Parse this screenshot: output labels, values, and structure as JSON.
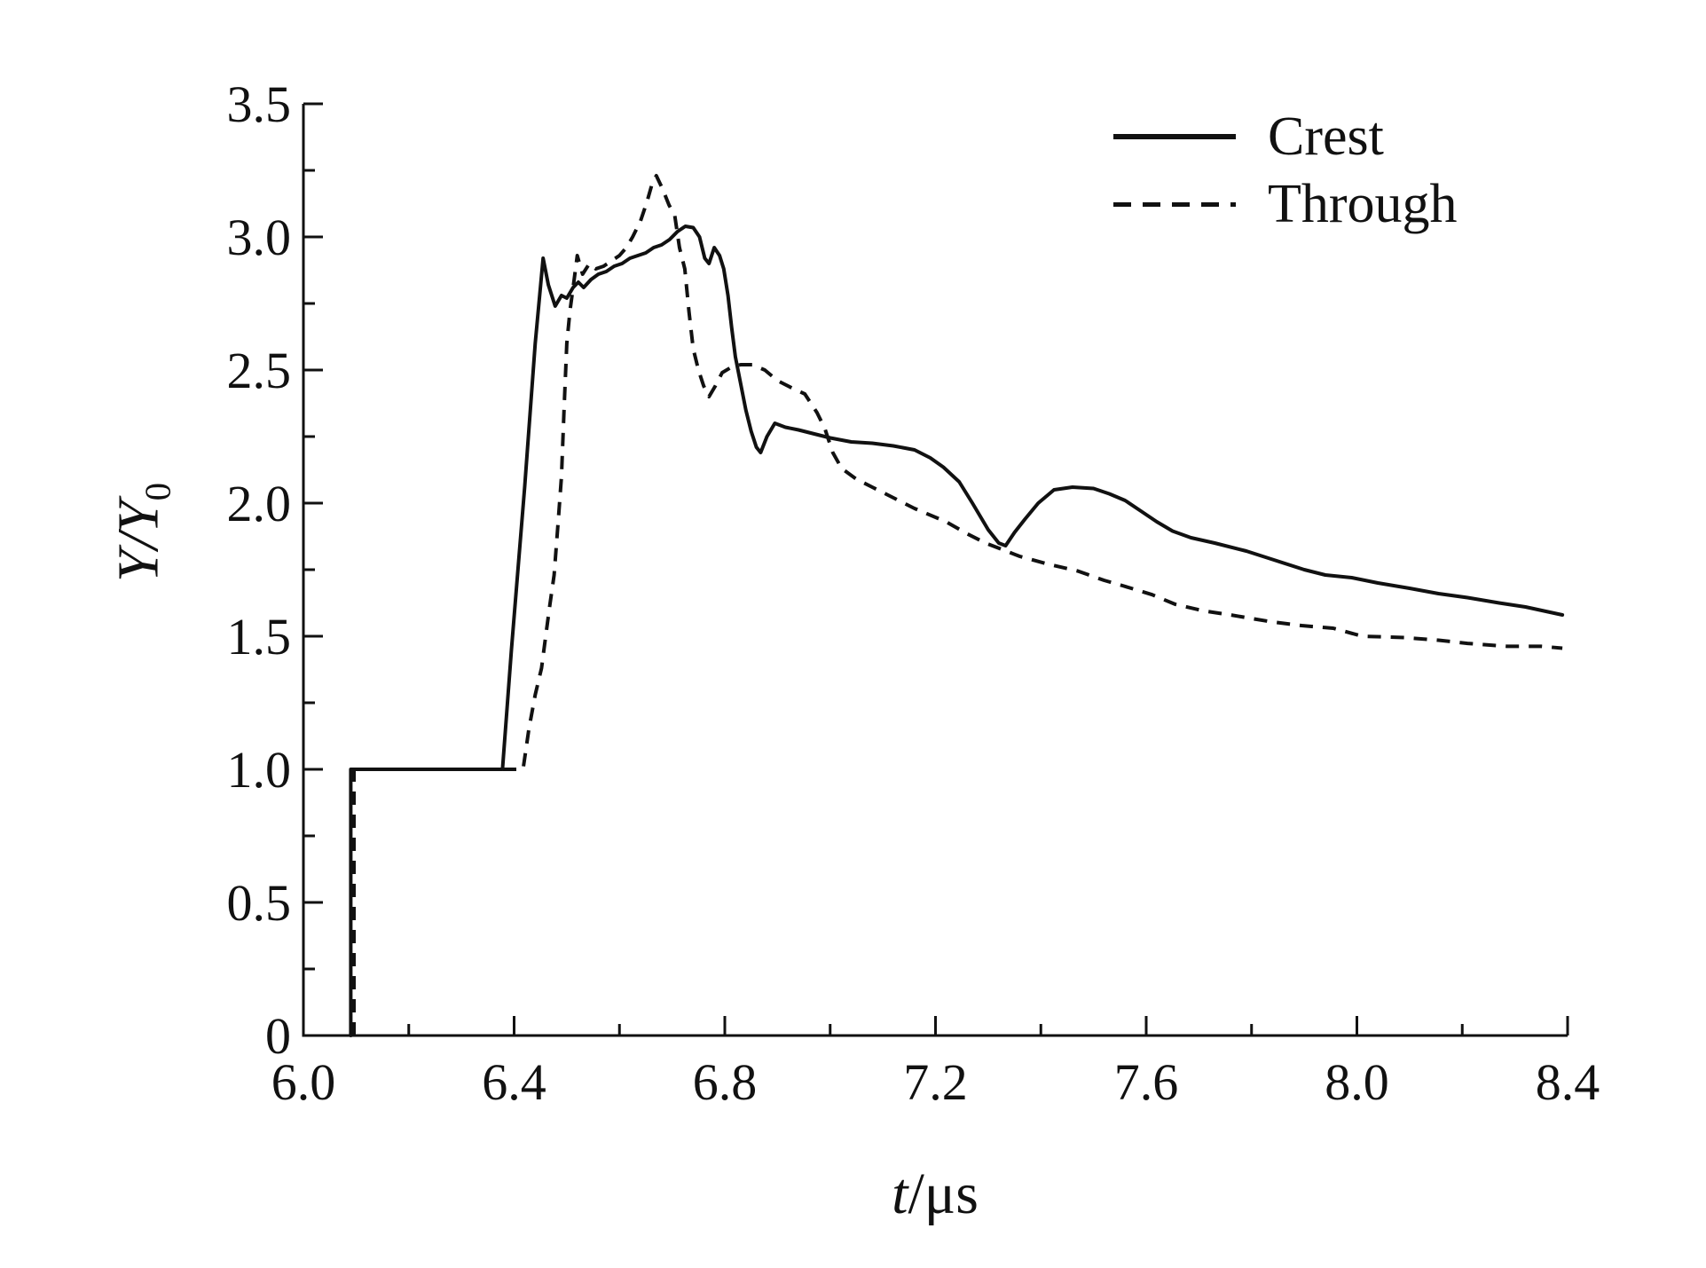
{
  "figure": {
    "background": "#ffffff",
    "line_color": "#111111"
  },
  "labels": {
    "xlabel_italic": "t",
    "xlabel_rest": "/μs",
    "ylabel_main": "Y/Y",
    "ylabel_sub": "0"
  },
  "legend": {
    "items": [
      {
        "label": "Crest",
        "style": "solid"
      },
      {
        "label": "Through",
        "style": "dashed"
      }
    ]
  },
  "chart_data": {
    "type": "line",
    "title": "",
    "xlabel": "t/μs",
    "ylabel": "Y/Y0",
    "xlim": [
      6.0,
      8.4
    ],
    "ylim": [
      0,
      3.5
    ],
    "x_major_step": 0.4,
    "x_minor_step": 0.2,
    "y_major_step": 0.5,
    "y_minor_step": 0.25,
    "xtick_labels": [
      "6.0",
      "6.4",
      "6.8",
      "7.2",
      "7.6",
      "8.0",
      "8.4"
    ],
    "ytick_labels": [
      "0",
      "0.5",
      "1.0",
      "1.5",
      "2.0",
      "2.5",
      "3.0",
      "3.5"
    ],
    "grid": false,
    "legend_position": "upper right",
    "series": [
      {
        "name": "Crest",
        "style": "solid",
        "points": [
          [
            6.09,
            0.0
          ],
          [
            6.09,
            1.0
          ],
          [
            6.378,
            1.0
          ],
          [
            6.395,
            1.45
          ],
          [
            6.42,
            2.06
          ],
          [
            6.44,
            2.6
          ],
          [
            6.455,
            2.92
          ],
          [
            6.465,
            2.82
          ],
          [
            6.478,
            2.74
          ],
          [
            6.49,
            2.78
          ],
          [
            6.5,
            2.77
          ],
          [
            6.512,
            2.81
          ],
          [
            6.522,
            2.83
          ],
          [
            6.532,
            2.81
          ],
          [
            6.546,
            2.84
          ],
          [
            6.56,
            2.86
          ],
          [
            6.575,
            2.87
          ],
          [
            6.59,
            2.89
          ],
          [
            6.605,
            2.9
          ],
          [
            6.62,
            2.92
          ],
          [
            6.635,
            2.93
          ],
          [
            6.65,
            2.94
          ],
          [
            6.665,
            2.96
          ],
          [
            6.68,
            2.97
          ],
          [
            6.695,
            2.99
          ],
          [
            6.71,
            3.02
          ],
          [
            6.725,
            3.04
          ],
          [
            6.74,
            3.035
          ],
          [
            6.752,
            3.0
          ],
          [
            6.762,
            2.92
          ],
          [
            6.77,
            2.9
          ],
          [
            6.78,
            2.96
          ],
          [
            6.79,
            2.93
          ],
          [
            6.798,
            2.88
          ],
          [
            6.806,
            2.78
          ],
          [
            6.813,
            2.66
          ],
          [
            6.82,
            2.55
          ],
          [
            6.83,
            2.45
          ],
          [
            6.84,
            2.35
          ],
          [
            6.85,
            2.27
          ],
          [
            6.86,
            2.21
          ],
          [
            6.868,
            2.19
          ],
          [
            6.88,
            2.25
          ],
          [
            6.895,
            2.3
          ],
          [
            6.915,
            2.285
          ],
          [
            6.94,
            2.275
          ],
          [
            6.97,
            2.26
          ],
          [
            7.0,
            2.245
          ],
          [
            7.04,
            2.23
          ],
          [
            7.08,
            2.225
          ],
          [
            7.12,
            2.215
          ],
          [
            7.16,
            2.2
          ],
          [
            7.19,
            2.17
          ],
          [
            7.215,
            2.135
          ],
          [
            7.245,
            2.08
          ],
          [
            7.27,
            2.0
          ],
          [
            7.3,
            1.9
          ],
          [
            7.32,
            1.85
          ],
          [
            7.333,
            1.84
          ],
          [
            7.35,
            1.89
          ],
          [
            7.37,
            1.94
          ],
          [
            7.395,
            2.0
          ],
          [
            7.425,
            2.05
          ],
          [
            7.46,
            2.06
          ],
          [
            7.5,
            2.055
          ],
          [
            7.53,
            2.035
          ],
          [
            7.56,
            2.01
          ],
          [
            7.59,
            1.97
          ],
          [
            7.62,
            1.93
          ],
          [
            7.65,
            1.895
          ],
          [
            7.685,
            1.87
          ],
          [
            7.73,
            1.85
          ],
          [
            7.79,
            1.82
          ],
          [
            7.845,
            1.785
          ],
          [
            7.9,
            1.75
          ],
          [
            7.94,
            1.73
          ],
          [
            7.99,
            1.72
          ],
          [
            8.04,
            1.7
          ],
          [
            8.1,
            1.68
          ],
          [
            8.155,
            1.66
          ],
          [
            8.21,
            1.645
          ],
          [
            8.27,
            1.625
          ],
          [
            8.32,
            1.61
          ],
          [
            8.39,
            1.58
          ]
        ]
      },
      {
        "name": "Through",
        "style": "dashed",
        "points": [
          [
            6.096,
            0.0
          ],
          [
            6.096,
            1.0
          ],
          [
            6.417,
            1.0
          ],
          [
            6.428,
            1.15
          ],
          [
            6.44,
            1.28
          ],
          [
            6.452,
            1.38
          ],
          [
            6.46,
            1.5
          ],
          [
            6.468,
            1.62
          ],
          [
            6.476,
            1.73
          ],
          [
            6.484,
            1.94
          ],
          [
            6.49,
            2.1
          ],
          [
            6.495,
            2.36
          ],
          [
            6.5,
            2.6
          ],
          [
            6.506,
            2.72
          ],
          [
            6.514,
            2.84
          ],
          [
            6.52,
            2.93
          ],
          [
            6.53,
            2.86
          ],
          [
            6.543,
            2.9
          ],
          [
            6.555,
            2.88
          ],
          [
            6.57,
            2.89
          ],
          [
            6.585,
            2.91
          ],
          [
            6.6,
            2.93
          ],
          [
            6.613,
            2.96
          ],
          [
            6.625,
            3.0
          ],
          [
            6.64,
            3.06
          ],
          [
            6.652,
            3.13
          ],
          [
            6.662,
            3.2
          ],
          [
            6.67,
            3.23
          ],
          [
            6.682,
            3.18
          ],
          [
            6.694,
            3.12
          ],
          [
            6.705,
            3.08
          ],
          [
            6.714,
            2.96
          ],
          [
            6.724,
            2.88
          ],
          [
            6.732,
            2.72
          ],
          [
            6.74,
            2.58
          ],
          [
            6.75,
            2.5
          ],
          [
            6.76,
            2.44
          ],
          [
            6.77,
            2.4
          ],
          [
            6.782,
            2.44
          ],
          [
            6.795,
            2.49
          ],
          [
            6.812,
            2.51
          ],
          [
            6.83,
            2.52
          ],
          [
            6.852,
            2.52
          ],
          [
            6.876,
            2.5
          ],
          [
            6.9,
            2.46
          ],
          [
            6.93,
            2.43
          ],
          [
            6.952,
            2.41
          ],
          [
            6.975,
            2.34
          ],
          [
            6.99,
            2.28
          ],
          [
            7.005,
            2.19
          ],
          [
            7.022,
            2.13
          ],
          [
            7.05,
            2.09
          ],
          [
            7.08,
            2.06
          ],
          [
            7.11,
            2.03
          ],
          [
            7.16,
            1.98
          ],
          [
            7.22,
            1.93
          ],
          [
            7.26,
            1.885
          ],
          [
            7.295,
            1.85
          ],
          [
            7.36,
            1.8
          ],
          [
            7.415,
            1.77
          ],
          [
            7.47,
            1.745
          ],
          [
            7.52,
            1.71
          ],
          [
            7.555,
            1.69
          ],
          [
            7.61,
            1.657
          ],
          [
            7.655,
            1.62
          ],
          [
            7.71,
            1.595
          ],
          [
            7.76,
            1.58
          ],
          [
            7.835,
            1.555
          ],
          [
            7.895,
            1.54
          ],
          [
            7.955,
            1.53
          ],
          [
            8.01,
            1.5
          ],
          [
            8.09,
            1.495
          ],
          [
            8.155,
            1.485
          ],
          [
            8.21,
            1.473
          ],
          [
            8.285,
            1.462
          ],
          [
            8.35,
            1.462
          ],
          [
            8.39,
            1.455
          ]
        ]
      }
    ]
  }
}
